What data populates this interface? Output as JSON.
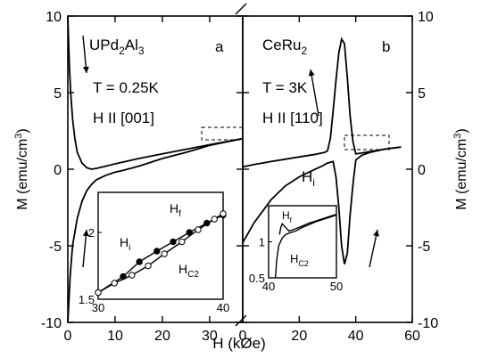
{
  "chart_data": [
    {
      "type": "line",
      "panel_label": "a",
      "title": "UPd2Al3",
      "title_main": "UPd",
      "title_sub1": "2",
      "title_mid": "Al",
      "title_sub2": "3",
      "annotations": {
        "temperature": "T = 0.25K",
        "field_dir": "H II [001]"
      },
      "xlabel": "H (kØe)",
      "ylabel": "M (emu/cm",
      "ylabel_sup": "3",
      "ylabel_end": ")",
      "xlim": [
        0,
        37
      ],
      "ylim": [
        -10,
        10
      ],
      "xticks": [
        0,
        10,
        20,
        30
      ],
      "yticks": [
        -10,
        -5,
        0,
        5,
        10
      ],
      "arrows": [
        "up (increasing field)",
        "down (decreasing field)"
      ],
      "series": [
        {
          "x": [
            0.0,
            0.3,
            0.6,
            1.0,
            1.5,
            2.0,
            3.0,
            4.0,
            5.0,
            6.0,
            7.0,
            8.0,
            10.0,
            15.0,
            20.0,
            25.0,
            30.0,
            37.0
          ],
          "y": [
            10.0,
            7.0,
            5.0,
            3.3,
            2.0,
            1.1,
            0.4,
            0.1,
            0.0,
            0.05,
            0.12,
            0.2,
            0.35,
            0.7,
            1.0,
            1.3,
            1.6,
            2.0
          ]
        },
        {
          "x": [
            0.0,
            0.5,
            1.0,
            2.0,
            3.0,
            4.0,
            5.0,
            6.0,
            8.0,
            10.0,
            12.0,
            15.0,
            20.0,
            25.0,
            30.0,
            37.0
          ],
          "y": [
            -10.0,
            -7.0,
            -5.0,
            -3.2,
            -2.1,
            -1.4,
            -1.0,
            -0.7,
            -0.4,
            -0.2,
            -0.05,
            0.2,
            0.7,
            1.1,
            1.55,
            2.0
          ]
        }
      ],
      "inset": {
        "xlim": [
          30,
          40
        ],
        "ylim": [
          1.5,
          2.3
        ],
        "xticks": [
          30,
          40
        ],
        "yticks": [
          1.5,
          2
        ],
        "labels": {
          "Hi": "H",
          "Hi_sub": "i",
          "Hf": "H",
          "Hf_sub": "f",
          "Hc2": "H",
          "Hc2_sub": "C2"
        },
        "series": [
          {
            "name": "filled",
            "x": [
              30,
              32,
              33.3,
              34.7,
              36,
              37.3,
              38.7,
              40
            ],
            "y": [
              1.55,
              1.67,
              1.78,
              1.86,
              1.93,
              2.0,
              2.07,
              2.13
            ]
          },
          {
            "name": "open",
            "x": [
              30,
              31.3,
              32.7,
              34,
              35.3,
              36.7,
              38,
              39.3,
              40
            ],
            "y": [
              1.55,
              1.62,
              1.68,
              1.75,
              1.84,
              1.93,
              2.02,
              2.1,
              2.14
            ]
          }
        ]
      }
    },
    {
      "type": "line",
      "panel_label": "b",
      "title": "CeRu2",
      "title_main": "CeRu",
      "title_sub1": "2",
      "annotations": {
        "temperature": "T = 3K",
        "field_dir": "H II [110]"
      },
      "xlabel": "H (kØe)",
      "ylabel": "M (emu/cm",
      "ylabel_sup": "3",
      "ylabel_end": ")",
      "xlim": [
        0,
        60
      ],
      "ylim": [
        -10,
        10
      ],
      "xticks": [
        0,
        20,
        40,
        60
      ],
      "yticks": [
        -10,
        -5,
        0,
        5,
        10
      ],
      "hi_label": "H",
      "hi_sub": "i",
      "series": [
        {
          "x": [
            0,
            4,
            10,
            15,
            20,
            25,
            29,
            30,
            31,
            32,
            33,
            34,
            35,
            36,
            37,
            38,
            39,
            40,
            42,
            45,
            50,
            56
          ],
          "y": [
            0.15,
            0.3,
            0.5,
            0.65,
            0.8,
            0.95,
            1.1,
            1.2,
            2.0,
            3.8,
            5.8,
            7.6,
            8.5,
            8.2,
            6.0,
            3.5,
            1.8,
            1.0,
            1.05,
            1.15,
            1.3,
            1.45
          ]
        },
        {
          "x": [
            0,
            4,
            10,
            15,
            20,
            25,
            28,
            30,
            32,
            33,
            34,
            35,
            36,
            37,
            38,
            39,
            40,
            42,
            45,
            50,
            56
          ],
          "y": [
            -4.8,
            -3.5,
            -2.0,
            -1.1,
            -0.5,
            -0.05,
            0.2,
            0.4,
            0.5,
            -0.5,
            -2.5,
            -5.0,
            -6.2,
            -5.5,
            -3.0,
            -1.0,
            0.6,
            0.9,
            1.1,
            1.3,
            1.45
          ]
        }
      ],
      "inset": {
        "xlim": [
          40,
          50
        ],
        "ylim": [
          0.5,
          1.5
        ],
        "xticks": [
          40,
          50
        ],
        "yticks": [
          0.5,
          1
        ],
        "labels": {
          "Hf": "H",
          "Hf_sub": "f",
          "Hc2": "H",
          "Hc2_sub": "C2"
        },
        "series": [
          {
            "name": "upper",
            "x": [
              41.6,
              41.8,
              42,
              42.5,
              43,
              44,
              45,
              46,
              47,
              48,
              49,
              50
            ],
            "y": [
              1.1,
              1.2,
              1.25,
              1.2,
              1.15,
              1.18,
              1.22,
              1.26,
              1.29,
              1.32,
              1.35,
              1.38
            ]
          },
          {
            "name": "lower",
            "x": [
              41.0,
              41.2,
              41.5,
              42,
              42.5,
              43,
              44,
              45,
              46,
              47,
              48,
              49,
              50
            ],
            "y": [
              0.5,
              0.75,
              0.95,
              1.05,
              1.1,
              1.12,
              1.15,
              1.2,
              1.24,
              1.28,
              1.31,
              1.34,
              1.37
            ]
          }
        ]
      }
    }
  ]
}
